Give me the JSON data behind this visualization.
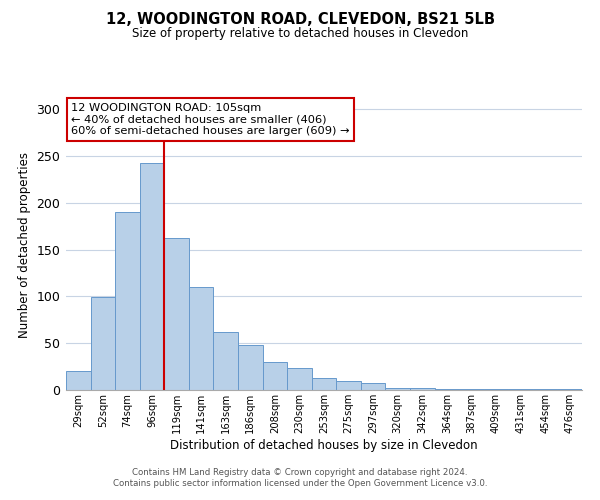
{
  "title": "12, WOODINGTON ROAD, CLEVEDON, BS21 5LB",
  "subtitle": "Size of property relative to detached houses in Clevedon",
  "xlabel": "Distribution of detached houses by size in Clevedon",
  "ylabel": "Number of detached properties",
  "bar_values": [
    20,
    99,
    190,
    243,
    163,
    110,
    62,
    48,
    30,
    24,
    13,
    10,
    7,
    2,
    2,
    1,
    1,
    1,
    1,
    1,
    1
  ],
  "bin_labels": [
    "29sqm",
    "52sqm",
    "74sqm",
    "96sqm",
    "119sqm",
    "141sqm",
    "163sqm",
    "186sqm",
    "208sqm",
    "230sqm",
    "253sqm",
    "275sqm",
    "297sqm",
    "320sqm",
    "342sqm",
    "364sqm",
    "387sqm",
    "409sqm",
    "431sqm",
    "454sqm",
    "476sqm"
  ],
  "bar_color": "#b8d0e8",
  "bar_edge_color": "#6699cc",
  "vline_color": "#cc0000",
  "vline_x_index": 3,
  "annotation_text": "12 WOODINGTON ROAD: 105sqm\n← 40% of detached houses are smaller (406)\n60% of semi-detached houses are larger (609) →",
  "annotation_box_color": "#ffffff",
  "annotation_box_edge_color": "#cc0000",
  "ylim": [
    0,
    310
  ],
  "yticks": [
    0,
    50,
    100,
    150,
    200,
    250,
    300
  ],
  "footer_line1": "Contains HM Land Registry data © Crown copyright and database right 2024.",
  "footer_line2": "Contains public sector information licensed under the Open Government Licence v3.0.",
  "background_color": "#ffffff",
  "grid_color": "#c8d4e4"
}
